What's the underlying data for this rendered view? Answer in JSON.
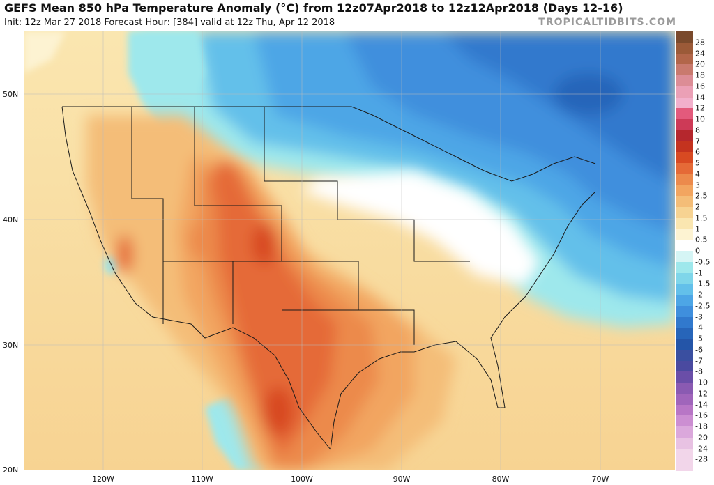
{
  "header": {
    "title": "GEFS Mean 850 hPa Temperature Anomaly (°C) from 12z07Apr2018 to 12z12Apr2018 (Days 12-16)",
    "subtitle": "Init: 12z Mar 27 2018   Forecast Hour: [384]   valid at 12z Thu, Apr 12 2018",
    "brand": "TROPICALTIDBITS.COM"
  },
  "axes": {
    "latitude_labels": [
      "50N",
      "40N",
      "30N",
      "20N"
    ],
    "longitude_labels": [
      "120W",
      "110W",
      "100W",
      "90W",
      "80W",
      "70W"
    ]
  },
  "colorbar": {
    "levels": [
      "28",
      "24",
      "20",
      "18",
      "16",
      "14",
      "12",
      "10",
      "8",
      "7",
      "6",
      "5",
      "4",
      "3",
      "2.5",
      "2",
      "1.5",
      "1",
      "0.5",
      "0",
      "-0.5",
      "-1",
      "-1.5",
      "-2",
      "-2.5",
      "-3",
      "-4",
      "-5",
      "-6",
      "-7",
      "-8",
      "-10",
      "-12",
      "-14",
      "-16",
      "-18",
      "-20",
      "-24",
      "-28"
    ],
    "colors": [
      "#7a4a2c",
      "#9b5a38",
      "#b2664a",
      "#c97a6e",
      "#dc8d96",
      "#eba0b6",
      "#f2b0cc",
      "#e35a7c",
      "#cd3a57",
      "#b5272d",
      "#c4331f",
      "#d84a22",
      "#e56a37",
      "#ec8a4c",
      "#f2a560",
      "#f4bd78",
      "#f7d392",
      "#fae6b0",
      "#fdf3d2",
      "#ffffff",
      "#d5f5f5",
      "#9ee8ec",
      "#7fd6ea",
      "#63c0ea",
      "#4da6e6",
      "#3f8fdd",
      "#3179cd",
      "#2765b9",
      "#2455a8",
      "#3a4fa0",
      "#4a4aa0",
      "#6a4ea8",
      "#8a5ab2",
      "#a065bb",
      "#b876c6",
      "#cc8ed2",
      "#dba8dc",
      "#e8c2e3",
      "#f2d6ea"
    ]
  }
}
